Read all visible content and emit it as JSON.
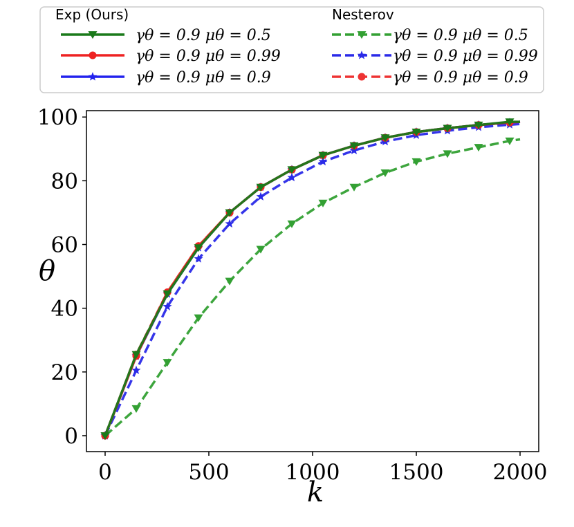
{
  "chart_data": {
    "type": "line",
    "xlabel": "k",
    "ylabel": "θ",
    "xlim": [
      -90,
      2090
    ],
    "ylim": [
      -5,
      102
    ],
    "xticks": [
      0,
      500,
      1000,
      1500,
      2000
    ],
    "yticks": [
      0,
      20,
      40,
      60,
      80,
      100
    ],
    "grid": false,
    "legend_placement": "top, outside plot area, two columns",
    "legend_groups": [
      {
        "heading": "Exp (Ours)",
        "series_indices": [
          0,
          1,
          2
        ]
      },
      {
        "heading": "Nesterov",
        "series_indices": [
          3,
          4,
          5
        ]
      }
    ],
    "series": [
      {
        "name": "γθ = 0.9 μθ = 0.5",
        "legend_text": "γθ = 0.9  μθ = 0.5",
        "color": "#1a7a1a",
        "linestyle": "solid",
        "marker": "triangle-down",
        "x": [
          0,
          150,
          300,
          450,
          600,
          750,
          900,
          1050,
          1200,
          1350,
          1500,
          1650,
          1800,
          1950,
          2000
        ],
        "y": [
          0,
          25.5,
          44.5,
          59,
          70,
          78,
          83.5,
          88,
          91,
          93.5,
          95.3,
          96.5,
          97.5,
          98.5,
          98.5
        ]
      },
      {
        "name": "γθ = 0.9 μθ = 0.99",
        "legend_text": "γθ = 0.9  μθ = 0.99",
        "color": "#ee2222",
        "linestyle": "solid",
        "marker": "circle",
        "x": [
          0,
          150,
          300,
          450,
          600,
          750,
          900,
          1050,
          1200,
          1350,
          1500,
          1650,
          1800,
          1950,
          2000
        ],
        "y": [
          0,
          25,
          45,
          59.5,
          70,
          78,
          83.5,
          88,
          91,
          93.5,
          95.3,
          96.5,
          97.5,
          98.3,
          98.5
        ]
      },
      {
        "name": "γθ = 0.9 μθ = 0.9",
        "legend_text": "γθ = 0.9  μθ = 0.9",
        "color": "#2222ee",
        "linestyle": "solid",
        "marker": "star",
        "x": [
          0,
          150,
          300,
          450,
          600,
          750,
          900,
          1050,
          1200,
          1350,
          1500,
          1650,
          1800,
          1950,
          2000
        ],
        "y": [
          0,
          25,
          44.5,
          59,
          70,
          78,
          83.5,
          88,
          91,
          93.5,
          95.3,
          96.5,
          97.5,
          98.3,
          98.5
        ]
      },
      {
        "name": "γθ = 0.9 μθ = 0.5",
        "legend_text": "γθ = 0.9  μθ = 0.5",
        "color": "#33a033",
        "linestyle": "dashed",
        "marker": "triangle-down",
        "x": [
          0,
          150,
          300,
          450,
          600,
          750,
          900,
          1050,
          1200,
          1350,
          1500,
          1650,
          1800,
          1950,
          2000
        ],
        "y": [
          0,
          8.5,
          23,
          37,
          48.5,
          58.5,
          66.5,
          73,
          78,
          82.5,
          86,
          88.5,
          90.5,
          92.5,
          93
        ]
      },
      {
        "name": "γθ = 0.9 μθ = 0.99",
        "legend_text": "γθ = 0.9  μθ = 0.99",
        "color": "#2a2ae8",
        "linestyle": "dashed",
        "marker": "star",
        "x": [
          0,
          150,
          300,
          450,
          600,
          750,
          900,
          1050,
          1200,
          1350,
          1500,
          1650,
          1800,
          1950,
          2000
        ],
        "y": [
          0,
          20.5,
          40.5,
          55.5,
          66.5,
          75,
          81,
          86,
          89.5,
          92.3,
          94.3,
          95.7,
          96.8,
          97.6,
          97.8
        ]
      },
      {
        "name": "γθ = 0.9 μθ = 0.9",
        "legend_text": "γθ = 0.9  μθ = 0.9",
        "color": "#ee3333",
        "linestyle": "dashed",
        "marker": "circle",
        "x": [
          0,
          150,
          300,
          450,
          600,
          750,
          900,
          1050,
          1200,
          1350,
          1500,
          1650,
          1800,
          1950,
          2000
        ],
        "y": [
          0,
          25.5,
          45,
          59.5,
          70,
          78,
          83.5,
          88,
          91,
          93.5,
          95.3,
          96.5,
          97.5,
          98.3,
          98.5
        ]
      }
    ]
  }
}
